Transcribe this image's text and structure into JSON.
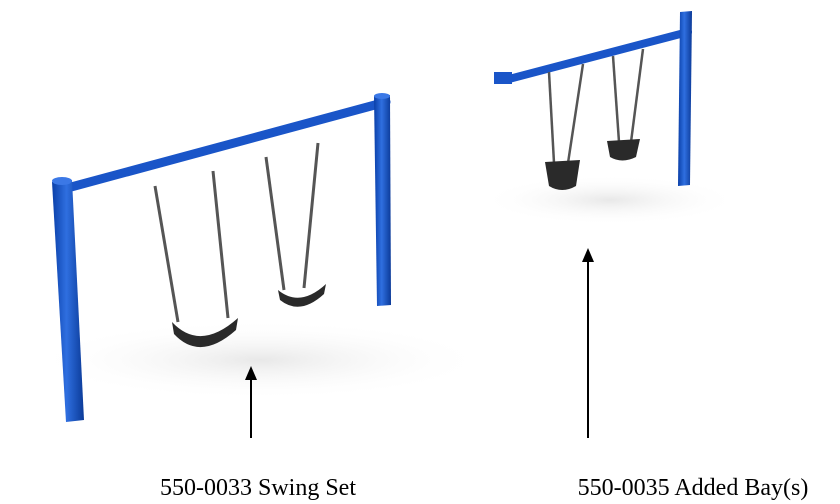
{
  "labels": {
    "swing_set": "550-0033 Swing Set",
    "added_bay": "550-0035 Added Bay(s)"
  }
}
